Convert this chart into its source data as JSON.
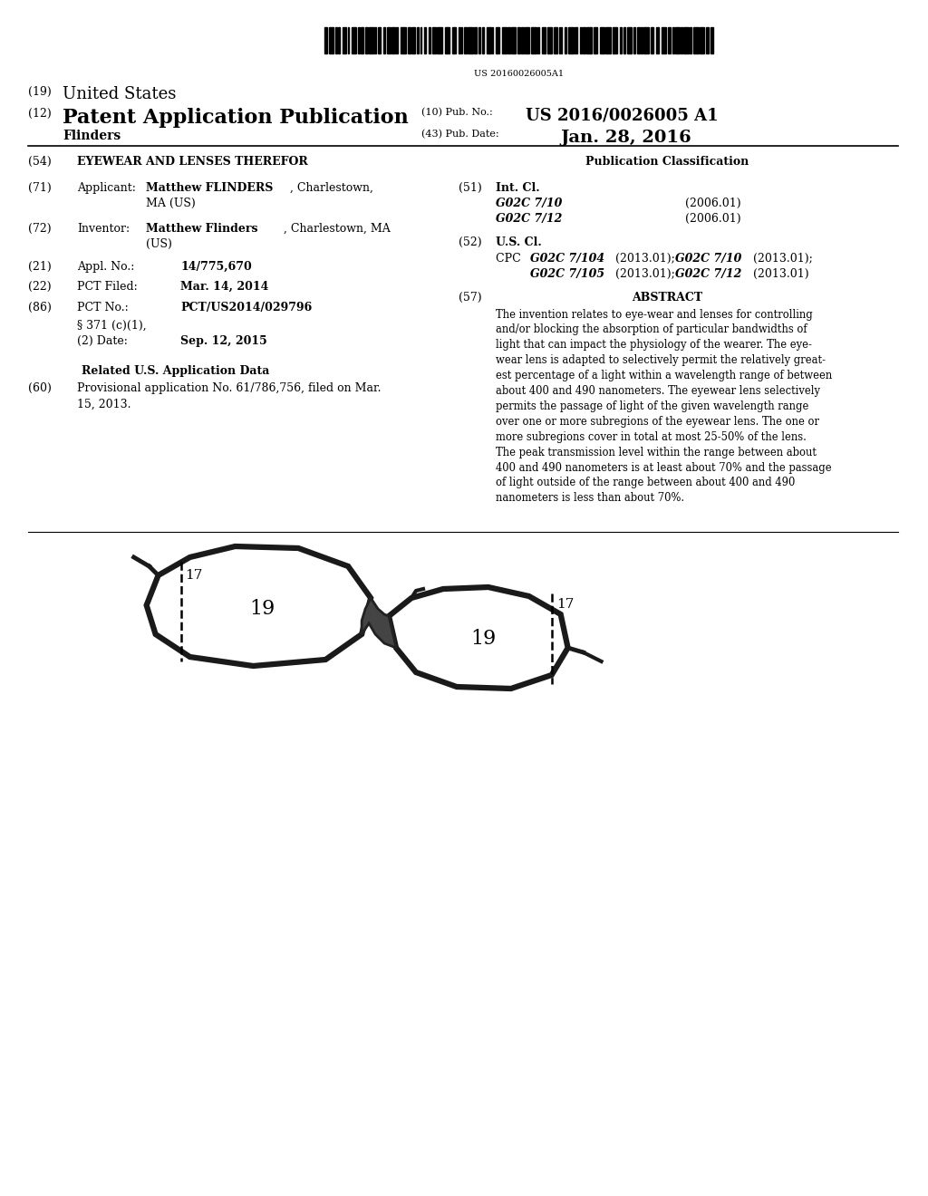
{
  "background_color": "#ffffff",
  "barcode_text": "US 20160026005A1",
  "us_label": "(19) United States",
  "patent_label": "(12) Patent Application Publication",
  "inventor_name": "Flinders",
  "pub_no_label": "(10) Pub. No.:",
  "pub_no_value": "US 2016/0026005 A1",
  "pub_date_label": "(43) Pub. Date:",
  "pub_date_value": "Jan. 28, 2016",
  "title_num": "(54)",
  "title_text": "EYEWEAR AND LENSES THEREFOR",
  "pub_class_header": "Publication Classification",
  "item71_num": "(71)",
  "item71_label": "Applicant:",
  "item72_num": "(72)",
  "item72_label": "Inventor:",
  "item21_num": "(21)",
  "item21_label": "Appl. No.:",
  "item21_value": "14/775,670",
  "item22_num": "(22)",
  "item22_label": "PCT Filed:",
  "item22_value": "Mar. 14, 2014",
  "item86_num": "(86)",
  "item86_label": "PCT No.:",
  "item86_value": "PCT/US2014/029796",
  "item86b": "§ 371 (c)(1),",
  "item86c_label": "(2) Date:",
  "item86c_value": "Sep. 12, 2015",
  "related_header": "Related U.S. Application Data",
  "item60_num": "(60)",
  "item60_line1": "Provisional application No. 61/786,756, filed on Mar.",
  "item60_line2": "15, 2013.",
  "int_cl_num": "(51)",
  "int_cl_header": "Int. Cl.",
  "int_cl_1": "G02C 7/10",
  "int_cl_1_date": "(2006.01)",
  "int_cl_2": "G02C 7/12",
  "int_cl_2_date": "(2006.01)",
  "us_cl_num": "(52)",
  "us_cl_header": "U.S. Cl.",
  "abstract_num": "(57)",
  "abstract_header": "ABSTRACT",
  "abstract_lines": [
    "The invention relates to eye-wear and lenses for controlling",
    "and/or blocking the absorption of particular bandwidths of",
    "light that can impact the physiology of the wearer. The eye-",
    "wear lens is adapted to selectively permit the relatively great-",
    "est percentage of a light within a wavelength range of between",
    "about 400 and 490 nanometers. The eyewear lens selectively",
    "permits the passage of light of the given wavelength range",
    "over one or more subregions of the eyewear lens. The one or",
    "more subregions cover in total at most 25-50% of the lens.",
    "The peak transmission level within the range between about",
    "400 and 490 nanometers is at least about 70% and the passage",
    "of light outside of the range between about 400 and 490",
    "nanometers is less than about 70%."
  ]
}
